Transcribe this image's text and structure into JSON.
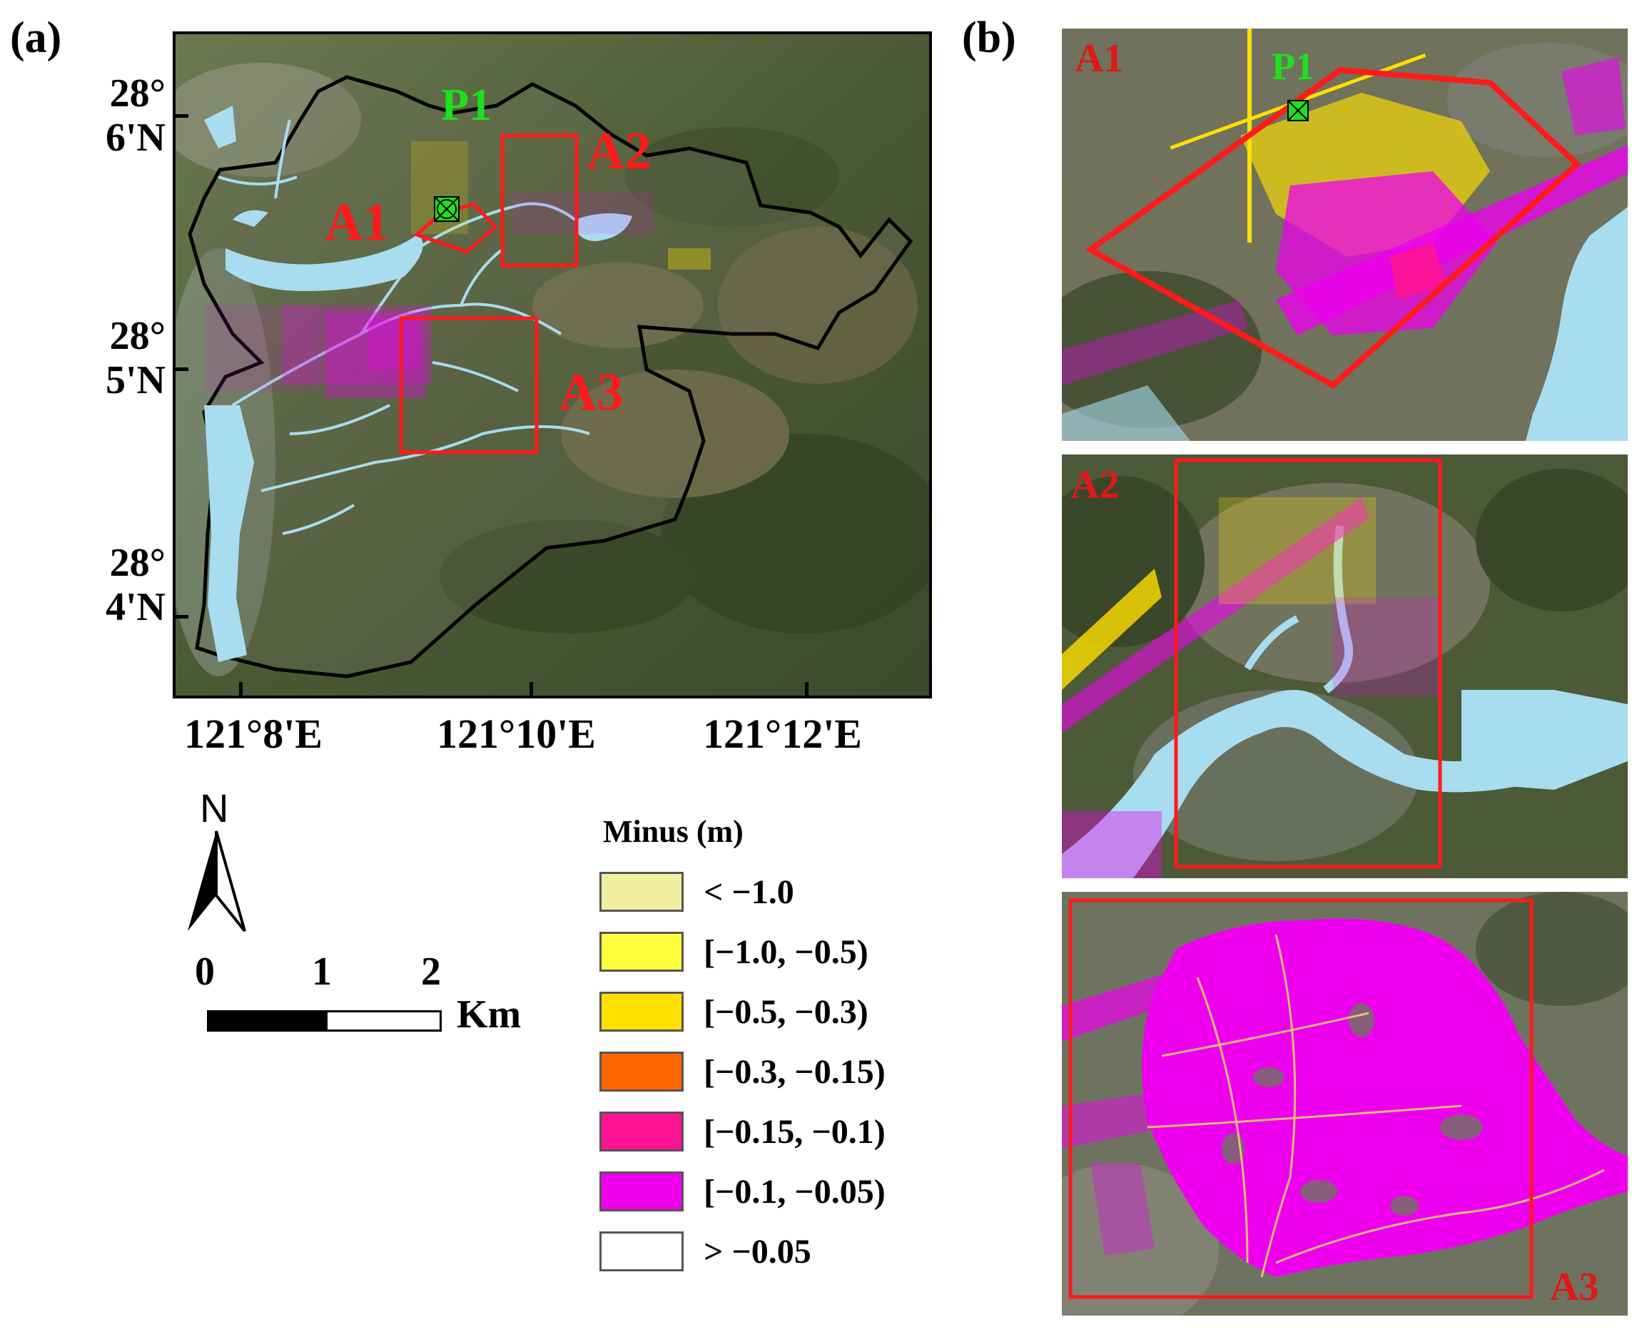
{
  "panels": {
    "a_label": "(a)",
    "b_label": "(b)"
  },
  "main_map": {
    "lat_ticks": [
      {
        "line1": "28°",
        "line2": "6'N"
      },
      {
        "line1": "28°",
        "line2": "5'N"
      },
      {
        "line1": "28°",
        "line2": "4'N"
      }
    ],
    "lon_ticks": [
      "121°8'E",
      "121°10'E",
      "121°12'E"
    ],
    "area_labels": {
      "a1": "A1",
      "a2": "A2",
      "a3": "A3"
    },
    "point_label": "P1"
  },
  "north_arrow": {
    "label": "N"
  },
  "scale_bar": {
    "ticks": [
      "0",
      "1",
      "2"
    ],
    "unit": "Km"
  },
  "legend": {
    "title": "Minus (m)",
    "items": [
      {
        "label": "< −1.0",
        "color": "#f2eea0"
      },
      {
        "label": "[−1.0, −0.5)",
        "color": "#ffff40"
      },
      {
        "label": "[−0.5, −0.3)",
        "color": "#ffe000"
      },
      {
        "label": "[−0.3, −0.15)",
        "color": "#ff6600"
      },
      {
        "label": "[−0.15, −0.1)",
        "color": "#ff1493"
      },
      {
        "label": "[−0.1, −0.05)",
        "color": "#ee00ee"
      },
      {
        "label": "> −0.05",
        "color": "#ffffff"
      }
    ]
  },
  "insets": {
    "a1": {
      "label": "A1",
      "point_label": "P1"
    },
    "a2": {
      "label": "A2"
    },
    "a3": {
      "label": "A3"
    }
  },
  "colors": {
    "boundary": "#000000",
    "highlight_box": "#ff1a1a",
    "water": "#a8dcef",
    "point_marker": "#1ee01e"
  }
}
